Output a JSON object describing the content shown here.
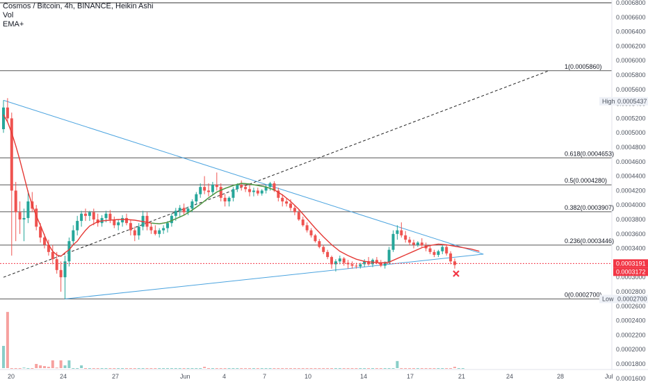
{
  "legend": {
    "title": "Cosmos / Bitcoin, 4h, BINANCE, Heikin Ashi",
    "vol": "Vol",
    "ema": "EMA+"
  },
  "colors": {
    "up": "#26a69a",
    "down": "#ef5350",
    "ema_red": "#e53935",
    "ema_green": "#43a047",
    "trendline": "#4aa3df",
    "fib": "#555555",
    "grid_text": "#4c525e",
    "current": "#f23645",
    "background": "#ffffff"
  },
  "chart_data": {
    "type": "candlestick",
    "symbol": "Cosmos / Bitcoin",
    "timeframe": "4h",
    "exchange": "BINANCE",
    "chart_style": "Heikin Ashi",
    "y_ticks": [
      "0.0006800",
      "0.0006600",
      "0.0006400",
      "0.0006200",
      "0.0006000",
      "0.0005800",
      "0.0005600",
      "0.0005400",
      "0.0005200",
      "0.0005000",
      "0.0004800",
      "0.0004600",
      "0.0004400",
      "0.0004200",
      "0.0004000",
      "0.0003800",
      "0.0003600",
      "0.0003400",
      "0.0003200",
      "0.0003000",
      "0.0002800",
      "0.0002600",
      "0.0002400",
      "0.0002200",
      "0.0002000",
      "0.0001800",
      "0.0001600"
    ],
    "x_ticks": [
      "20",
      "24",
      "27",
      "Jun",
      "4",
      "7",
      "10",
      "14",
      "17",
      "21",
      "24",
      "28",
      "Jul"
    ],
    "price_labels": {
      "high_label": "High",
      "high_value": "0.0005437",
      "low_label": "Low",
      "low_value": "0.0002700",
      "current_1": "0.0003191",
      "current_2": "0.0003172"
    },
    "fib_levels": [
      {
        "label": "1(0.0005860)",
        "value": 0.000586
      },
      {
        "label": "0.618(0.0004653)",
        "value": 0.0004653
      },
      {
        "label": "0.5(0.0004280)",
        "value": 0.000428
      },
      {
        "label": "0.382(0.0003907)",
        "value": 0.0003907
      },
      {
        "label": "0.236(0.0003446)",
        "value": 0.0003446
      },
      {
        "label": "0(0.0002700)",
        "value": 0.00027
      }
    ],
    "top_line_value": 0.00068,
    "trend_lines": {
      "upper": [
        [
          0,
          0.000545
        ],
        [
          117,
          0.000332
        ]
      ],
      "lower": [
        [
          15,
          0.00027
        ],
        [
          117,
          0.000332
        ]
      ],
      "projection": [
        [
          0,
          0.0003
        ],
        [
          133,
          0.000586
        ]
      ]
    },
    "ema_path": [
      [
        0,
        0.000525
      ],
      [
        1,
        0.000515
      ],
      [
        2,
        0.0005
      ],
      [
        3,
        0.000482
      ],
      [
        4,
        0.000462
      ],
      [
        5,
        0.00044
      ],
      [
        6,
        0.000418
      ],
      [
        7,
        0.0004
      ],
      [
        8,
        0.000385
      ],
      [
        9,
        0.000372
      ],
      [
        10,
        0.000358
      ],
      [
        11,
        0.000345
      ],
      [
        12,
        0.000336
      ],
      [
        13,
        0.000331
      ],
      [
        14,
        0.000329
      ],
      [
        15,
        0.000334
      ],
      [
        16,
        0.000338
      ],
      [
        17,
        0.000345
      ],
      [
        18,
        0.00035
      ],
      [
        19,
        0.000358
      ],
      [
        20,
        0.000365
      ],
      [
        21,
        0.000371
      ],
      [
        22,
        0.000374
      ],
      [
        23,
        0.000377
      ],
      [
        24,
        0.000378
      ],
      [
        26,
        0.000379
      ],
      [
        28,
        0.00038
      ],
      [
        30,
        0.00038
      ],
      [
        32,
        0.000379
      ],
      [
        34,
        0.000377
      ],
      [
        36,
        0.000375
      ],
      [
        38,
        0.000374
      ],
      [
        40,
        0.000376
      ],
      [
        42,
        0.000381
      ],
      [
        44,
        0.000386
      ],
      [
        46,
        0.000393
      ],
      [
        48,
        0.000401
      ],
      [
        50,
        0.00041
      ],
      [
        52,
        0.000418
      ],
      [
        54,
        0.000423
      ],
      [
        56,
        0.000427
      ],
      [
        58,
        0.00043
      ],
      [
        60,
        0.000429
      ],
      [
        62,
        0.000427
      ],
      [
        64,
        0.000425
      ],
      [
        66,
        0.000421
      ],
      [
        68,
        0.000414
      ],
      [
        70,
        0.000405
      ],
      [
        72,
        0.000394
      ],
      [
        74,
        0.000381
      ],
      [
        76,
        0.000368
      ],
      [
        78,
        0.000356
      ],
      [
        80,
        0.000345
      ],
      [
        82,
        0.000336
      ],
      [
        84,
        0.00033
      ],
      [
        86,
        0.000325
      ],
      [
        88,
        0.000322
      ],
      [
        90,
        0.000321
      ],
      [
        92,
        0.00032
      ],
      [
        94,
        0.000321
      ],
      [
        96,
        0.000326
      ],
      [
        98,
        0.000331
      ],
      [
        100,
        0.000336
      ],
      [
        102,
        0.000341
      ],
      [
        104,
        0.000344
      ],
      [
        106,
        0.000346
      ],
      [
        108,
        0.000345
      ],
      [
        110,
        0.000343
      ],
      [
        112,
        0.000341
      ],
      [
        114,
        0.000339
      ],
      [
        116,
        0.000336
      ]
    ],
    "ema_green_from": 98,
    "candles": [
      {
        "o": 0.000505,
        "h": 0.000545,
        "l": 0.0005,
        "c": 0.000535
      },
      {
        "o": 0.000535,
        "h": 0.000548,
        "l": 0.000515,
        "c": 0.00052
      },
      {
        "o": 0.00052,
        "h": 0.000528,
        "l": 0.00033,
        "c": 0.00042
      },
      {
        "o": 0.00042,
        "h": 0.000432,
        "l": 0.00035,
        "c": 0.00039
      },
      {
        "o": 0.00039,
        "h": 0.000405,
        "l": 0.00036,
        "c": 0.00038
      },
      {
        "o": 0.00038,
        "h": 0.000395,
        "l": 0.00035,
        "c": 0.000382
      },
      {
        "o": 0.000382,
        "h": 0.00042,
        "l": 0.000375,
        "c": 0.000405
      },
      {
        "o": 0.000405,
        "h": 0.000418,
        "l": 0.00039,
        "c": 0.000395
      },
      {
        "o": 0.000395,
        "h": 0.0004,
        "l": 0.000365,
        "c": 0.00037
      },
      {
        "o": 0.00037,
        "h": 0.000375,
        "l": 0.000348,
        "c": 0.000355
      },
      {
        "o": 0.000355,
        "h": 0.00036,
        "l": 0.00034,
        "c": 0.000345
      },
      {
        "o": 0.000345,
        "h": 0.000352,
        "l": 0.00033,
        "c": 0.000335
      },
      {
        "o": 0.000335,
        "h": 0.000345,
        "l": 0.000318,
        "c": 0.000325
      },
      {
        "o": 0.000325,
        "h": 0.000335,
        "l": 0.000305,
        "c": 0.00031
      },
      {
        "o": 0.00031,
        "h": 0.000322,
        "l": 0.00028,
        "c": 0.0003
      },
      {
        "o": 0.0003,
        "h": 0.00033,
        "l": 0.00027,
        "c": 0.000322
      },
      {
        "o": 0.000322,
        "h": 0.000355,
        "l": 0.000315,
        "c": 0.00035
      },
      {
        "o": 0.00035,
        "h": 0.000372,
        "l": 0.000345,
        "c": 0.000365
      },
      {
        "o": 0.000365,
        "h": 0.000385,
        "l": 0.000358,
        "c": 0.000378
      },
      {
        "o": 0.000378,
        "h": 0.000392,
        "l": 0.00037,
        "c": 0.000388
      },
      {
        "o": 0.000388,
        "h": 0.000395,
        "l": 0.000378,
        "c": 0.000385
      },
      {
        "o": 0.000385,
        "h": 0.000392,
        "l": 0.000378,
        "c": 0.00039
      },
      {
        "o": 0.00039,
        "h": 0.000395,
        "l": 0.000372,
        "c": 0.00038
      },
      {
        "o": 0.00038,
        "h": 0.000388,
        "l": 0.00037,
        "c": 0.000375
      },
      {
        "o": 0.000375,
        "h": 0.000386,
        "l": 0.00037,
        "c": 0.000382
      },
      {
        "o": 0.000382,
        "h": 0.000392,
        "l": 0.000376,
        "c": 0.000388
      },
      {
        "o": 0.000388,
        "h": 0.000393,
        "l": 0.000375,
        "c": 0.00038
      },
      {
        "o": 0.00038,
        "h": 0.000384,
        "l": 0.000368,
        "c": 0.000372
      },
      {
        "o": 0.000372,
        "h": 0.00038,
        "l": 0.000365,
        "c": 0.000376
      },
      {
        "o": 0.000376,
        "h": 0.000386,
        "l": 0.00037,
        "c": 0.000382
      },
      {
        "o": 0.000382,
        "h": 0.000388,
        "l": 0.000372,
        "c": 0.000375
      },
      {
        "o": 0.000375,
        "h": 0.00038,
        "l": 0.000358,
        "c": 0.000365
      },
      {
        "o": 0.000365,
        "h": 0.00037,
        "l": 0.00035,
        "c": 0.000358
      },
      {
        "o": 0.000358,
        "h": 0.000375,
        "l": 0.000352,
        "c": 0.00037
      },
      {
        "o": 0.00037,
        "h": 0.000392,
        "l": 0.000365,
        "c": 0.000385
      },
      {
        "o": 0.000385,
        "h": 0.00039,
        "l": 0.000365,
        "c": 0.00037
      },
      {
        "o": 0.00037,
        "h": 0.000375,
        "l": 0.00036,
        "c": 0.000365
      },
      {
        "o": 0.000365,
        "h": 0.000372,
        "l": 0.000358,
        "c": 0.00036
      },
      {
        "o": 0.00036,
        "h": 0.000368,
        "l": 0.000355,
        "c": 0.000365
      },
      {
        "o": 0.000365,
        "h": 0.000372,
        "l": 0.00036,
        "c": 0.000368
      },
      {
        "o": 0.000368,
        "h": 0.000378,
        "l": 0.000362,
        "c": 0.000375
      },
      {
        "o": 0.000375,
        "h": 0.000388,
        "l": 0.00037,
        "c": 0.000385
      },
      {
        "o": 0.000385,
        "h": 0.000396,
        "l": 0.000378,
        "c": 0.000392
      },
      {
        "o": 0.000392,
        "h": 0.0004,
        "l": 0.000384,
        "c": 0.000396
      },
      {
        "o": 0.000396,
        "h": 0.000402,
        "l": 0.000386,
        "c": 0.00039
      },
      {
        "o": 0.00039,
        "h": 0.000398,
        "l": 0.000386,
        "c": 0.000395
      },
      {
        "o": 0.000395,
        "h": 0.000408,
        "l": 0.00039,
        "c": 0.000405
      },
      {
        "o": 0.000405,
        "h": 0.000418,
        "l": 0.0004,
        "c": 0.000415
      },
      {
        "o": 0.000415,
        "h": 0.00043,
        "l": 0.00041,
        "c": 0.000425
      },
      {
        "o": 0.000425,
        "h": 0.00044,
        "l": 0.000415,
        "c": 0.00042
      },
      {
        "o": 0.00042,
        "h": 0.00043,
        "l": 0.000412,
        "c": 0.000418
      },
      {
        "o": 0.000418,
        "h": 0.000432,
        "l": 0.000414,
        "c": 0.000428
      },
      {
        "o": 0.000428,
        "h": 0.000445,
        "l": 0.00042,
        "c": 0.000425
      },
      {
        "o": 0.000425,
        "h": 0.00043,
        "l": 0.000405,
        "c": 0.00041
      },
      {
        "o": 0.00041,
        "h": 0.000415,
        "l": 0.000398,
        "c": 0.000405
      },
      {
        "o": 0.000405,
        "h": 0.000412,
        "l": 0.000398,
        "c": 0.00041
      },
      {
        "o": 0.00041,
        "h": 0.000425,
        "l": 0.000405,
        "c": 0.000422
      },
      {
        "o": 0.000422,
        "h": 0.00043,
        "l": 0.000418,
        "c": 0.000428
      },
      {
        "o": 0.000428,
        "h": 0.000434,
        "l": 0.00042,
        "c": 0.000425
      },
      {
        "o": 0.000425,
        "h": 0.00043,
        "l": 0.000418,
        "c": 0.000422
      },
      {
        "o": 0.000422,
        "h": 0.000428,
        "l": 0.000412,
        "c": 0.000418
      },
      {
        "o": 0.000418,
        "h": 0.000424,
        "l": 0.000412,
        "c": 0.00042
      },
      {
        "o": 0.00042,
        "h": 0.000424,
        "l": 0.000413,
        "c": 0.000416
      },
      {
        "o": 0.000416,
        "h": 0.000422,
        "l": 0.000413,
        "c": 0.00042
      },
      {
        "o": 0.00042,
        "h": 0.000428,
        "l": 0.000416,
        "c": 0.000425
      },
      {
        "o": 0.000425,
        "h": 0.000432,
        "l": 0.00042,
        "c": 0.00043
      },
      {
        "o": 0.00043,
        "h": 0.000433,
        "l": 0.000418,
        "c": 0.00042
      },
      {
        "o": 0.00042,
        "h": 0.000424,
        "l": 0.000405,
        "c": 0.00041
      },
      {
        "o": 0.00041,
        "h": 0.000415,
        "l": 0.000398,
        "c": 0.000405
      },
      {
        "o": 0.000405,
        "h": 0.00041,
        "l": 0.000398,
        "c": 0.000402
      },
      {
        "o": 0.000402,
        "h": 0.000408,
        "l": 0.000392,
        "c": 0.000396
      },
      {
        "o": 0.000396,
        "h": 0.0004,
        "l": 0.000386,
        "c": 0.00039
      },
      {
        "o": 0.00039,
        "h": 0.000393,
        "l": 0.000378,
        "c": 0.00038
      },
      {
        "o": 0.00038,
        "h": 0.000384,
        "l": 0.00037,
        "c": 0.000372
      },
      {
        "o": 0.000372,
        "h": 0.000376,
        "l": 0.000362,
        "c": 0.000365
      },
      {
        "o": 0.000365,
        "h": 0.000368,
        "l": 0.000355,
        "c": 0.000358
      },
      {
        "o": 0.000358,
        "h": 0.00036,
        "l": 0.000348,
        "c": 0.00035
      },
      {
        "o": 0.00035,
        "h": 0.000353,
        "l": 0.00034,
        "c": 0.000342
      },
      {
        "o": 0.000342,
        "h": 0.000345,
        "l": 0.000332,
        "c": 0.000335
      },
      {
        "o": 0.000335,
        "h": 0.000338,
        "l": 0.000325,
        "c": 0.000328
      },
      {
        "o": 0.000328,
        "h": 0.00033,
        "l": 0.000312,
        "c": 0.000318
      },
      {
        "o": 0.000318,
        "h": 0.000325,
        "l": 0.000308,
        "c": 0.000322
      },
      {
        "o": 0.000322,
        "h": 0.00033,
        "l": 0.000318,
        "c": 0.000326
      },
      {
        "o": 0.000326,
        "h": 0.000328,
        "l": 0.000316,
        "c": 0.00032
      },
      {
        "o": 0.00032,
        "h": 0.000324,
        "l": 0.000312,
        "c": 0.000318
      },
      {
        "o": 0.000318,
        "h": 0.000322,
        "l": 0.000312,
        "c": 0.000316
      },
      {
        "o": 0.000316,
        "h": 0.00032,
        "l": 0.000312,
        "c": 0.000315
      },
      {
        "o": 0.000315,
        "h": 0.00032,
        "l": 0.000312,
        "c": 0.000318
      },
      {
        "o": 0.000318,
        "h": 0.000325,
        "l": 0.000314,
        "c": 0.000322
      },
      {
        "o": 0.000322,
        "h": 0.000328,
        "l": 0.000316,
        "c": 0.000318
      },
      {
        "o": 0.000318,
        "h": 0.000326,
        "l": 0.000314,
        "c": 0.000324
      },
      {
        "o": 0.000324,
        "h": 0.000328,
        "l": 0.000318,
        "c": 0.00032
      },
      {
        "o": 0.00032,
        "h": 0.000324,
        "l": 0.000314,
        "c": 0.000316
      },
      {
        "o": 0.000316,
        "h": 0.000322,
        "l": 0.000312,
        "c": 0.00032
      },
      {
        "o": 0.00032,
        "h": 0.000342,
        "l": 0.000318,
        "c": 0.000338
      },
      {
        "o": 0.000338,
        "h": 0.000365,
        "l": 0.000335,
        "c": 0.00036
      },
      {
        "o": 0.00036,
        "h": 0.000372,
        "l": 0.000352,
        "c": 0.000365
      },
      {
        "o": 0.000365,
        "h": 0.000376,
        "l": 0.000355,
        "c": 0.000358
      },
      {
        "o": 0.000358,
        "h": 0.000364,
        "l": 0.000348,
        "c": 0.000352
      },
      {
        "o": 0.000352,
        "h": 0.000356,
        "l": 0.000344,
        "c": 0.000348
      },
      {
        "o": 0.000348,
        "h": 0.000352,
        "l": 0.00034,
        "c": 0.000345
      },
      {
        "o": 0.000345,
        "h": 0.00035,
        "l": 0.000342,
        "c": 0.000348
      },
      {
        "o": 0.000348,
        "h": 0.000354,
        "l": 0.000342,
        "c": 0.000344
      },
      {
        "o": 0.000344,
        "h": 0.000348,
        "l": 0.000336,
        "c": 0.00034
      },
      {
        "o": 0.00034,
        "h": 0.000344,
        "l": 0.000332,
        "c": 0.000335
      },
      {
        "o": 0.000335,
        "h": 0.000338,
        "l": 0.000328,
        "c": 0.000331
      },
      {
        "o": 0.000331,
        "h": 0.000338,
        "l": 0.000328,
        "c": 0.000336
      },
      {
        "o": 0.000336,
        "h": 0.000346,
        "l": 0.000332,
        "c": 0.000342
      },
      {
        "o": 0.000342,
        "h": 0.000345,
        "l": 0.00033,
        "c": 0.000333
      },
      {
        "o": 0.000333,
        "h": 0.000336,
        "l": 0.000318,
        "c": 0.000322
      },
      {
        "o": 0.000322,
        "h": 0.000326,
        "l": 0.000312,
        "c": 0.000317
      }
    ],
    "volume": [
      0.000205,
      0.000252,
      0.000165,
      0.000166,
      0.000172,
      0.000175,
      0.000174,
      0.000172,
      0.00018,
      0.000178,
      0.000177,
      0.000176,
      0.000185,
      0.000175,
      0.000185,
      0.000178,
      0.000185,
      0.000167,
      0.000166,
      0.000178,
      0.000168,
      0.000165,
      0.000172,
      0.000166,
      0.00017,
      0.000164,
      0.000167,
      0.000166,
      0.000172,
      0.000167,
      0.000165,
      0.000168,
      0.000164,
      0.000167,
      0.000166,
      0.000171,
      0.000165,
      0.000166,
      0.000164,
      0.000165,
      0.000166,
      0.000164,
      0.000167,
      0.000171,
      0.000167,
      0.000166,
      0.000165,
      0.00017,
      0.000168,
      0.000176,
      0.000165,
      0.000166,
      0.000171,
      0.000165,
      0.000166,
      0.000164,
      0.000166,
      0.000168,
      0.000165,
      0.000166,
      0.000164,
      0.000167,
      0.000165,
      0.000163,
      0.000165,
      0.000168,
      0.000166,
      0.000167,
      0.000172,
      0.000166,
      0.000167,
      0.000164,
      0.000165,
      0.000166,
      0.000164,
      0.000165,
      0.000163,
      0.000166,
      0.000164,
      0.000165,
      0.000167,
      0.000165,
      0.000164,
      0.000166,
      0.000163,
      0.000166,
      0.000165,
      0.000164,
      0.000167,
      0.000165,
      0.000166,
      0.000168,
      0.000164,
      0.000165,
      0.000166,
      0.000172,
      0.000184,
      0.000167,
      0.000166,
      0.000165,
      0.000164,
      0.000166,
      0.000165,
      0.000167,
      0.000168,
      0.000165,
      0.000164,
      0.000163,
      0.000165,
      0.000172,
      0.000176,
      0.000165,
      0.000164
    ],
    "volume_colors": "ratio"
  }
}
